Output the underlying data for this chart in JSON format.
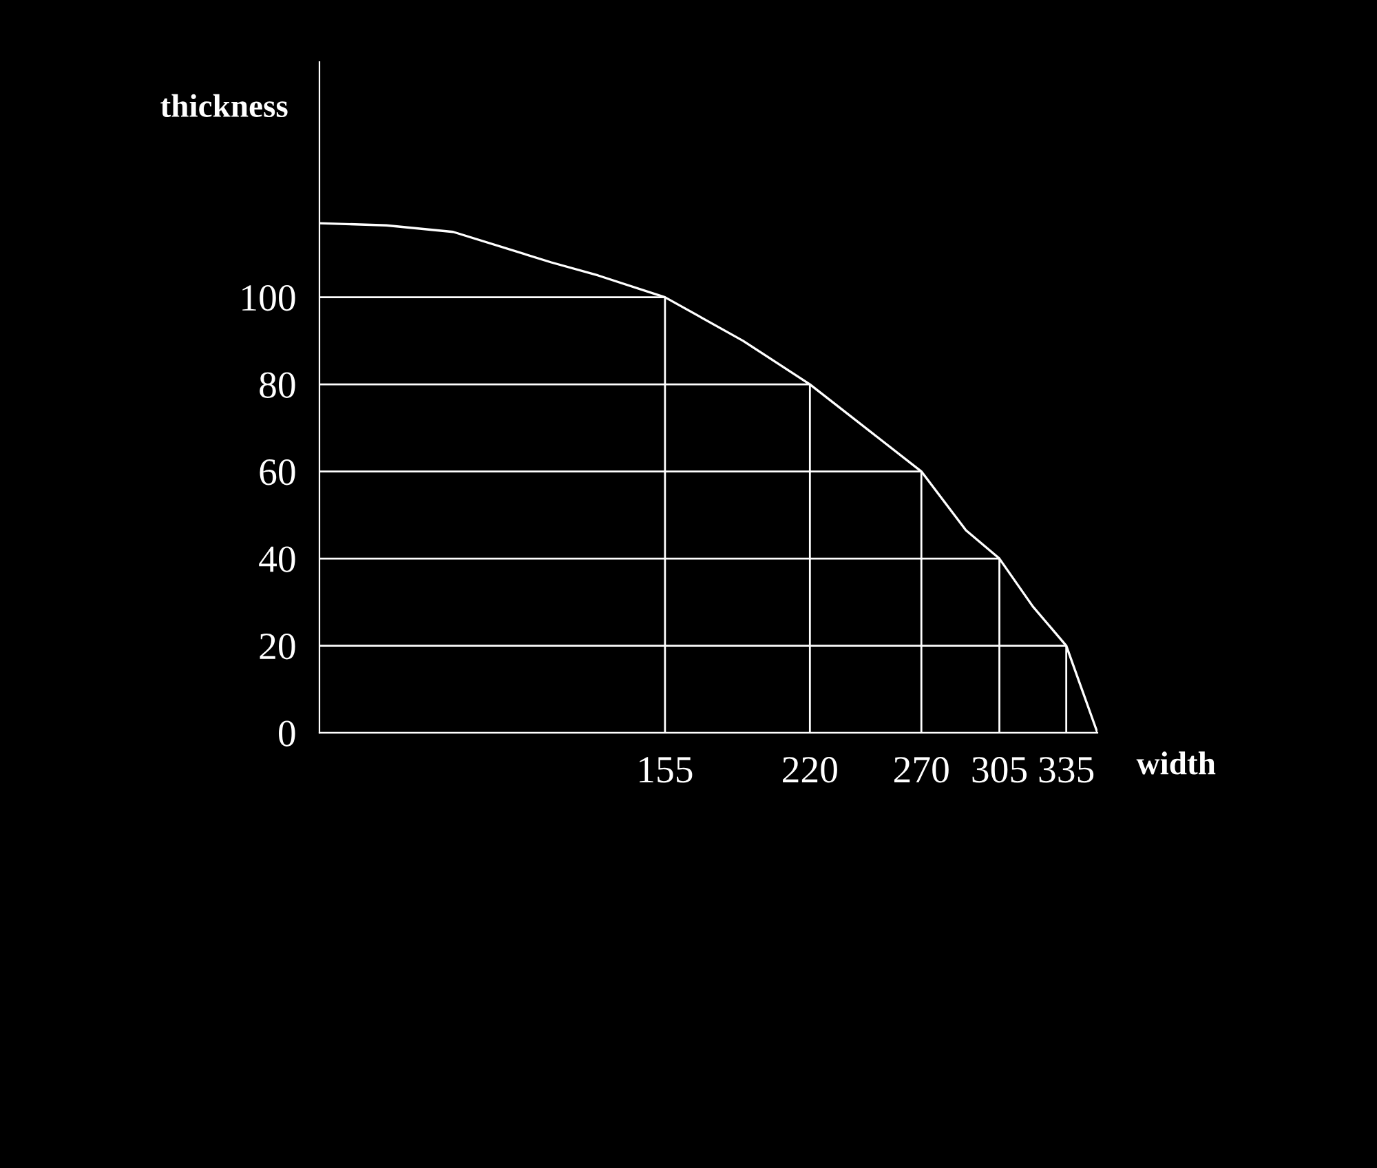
{
  "chart_data": {
    "type": "line",
    "xlabel": "width",
    "ylabel": "thickness",
    "x": [
      0,
      30,
      60,
      104,
      125,
      155,
      190,
      220,
      250,
      270,
      290,
      305,
      320,
      335,
      342,
      349
    ],
    "series": [
      {
        "color": "#ffffff",
        "values": [
          117,
          116.5,
          115,
          108,
          105,
          100,
          90,
          80,
          68,
          60,
          46.5,
          40,
          29,
          20,
          10,
          0
        ]
      }
    ],
    "xlim": [
      0,
      349
    ],
    "ylim": [
      0,
      154
    ],
    "xticks": [
      155,
      220,
      270,
      305,
      335
    ],
    "yticks": [
      0,
      20,
      40,
      60,
      80,
      100
    ],
    "grid": true,
    "marker": "none",
    "line_style": "solid"
  }
}
